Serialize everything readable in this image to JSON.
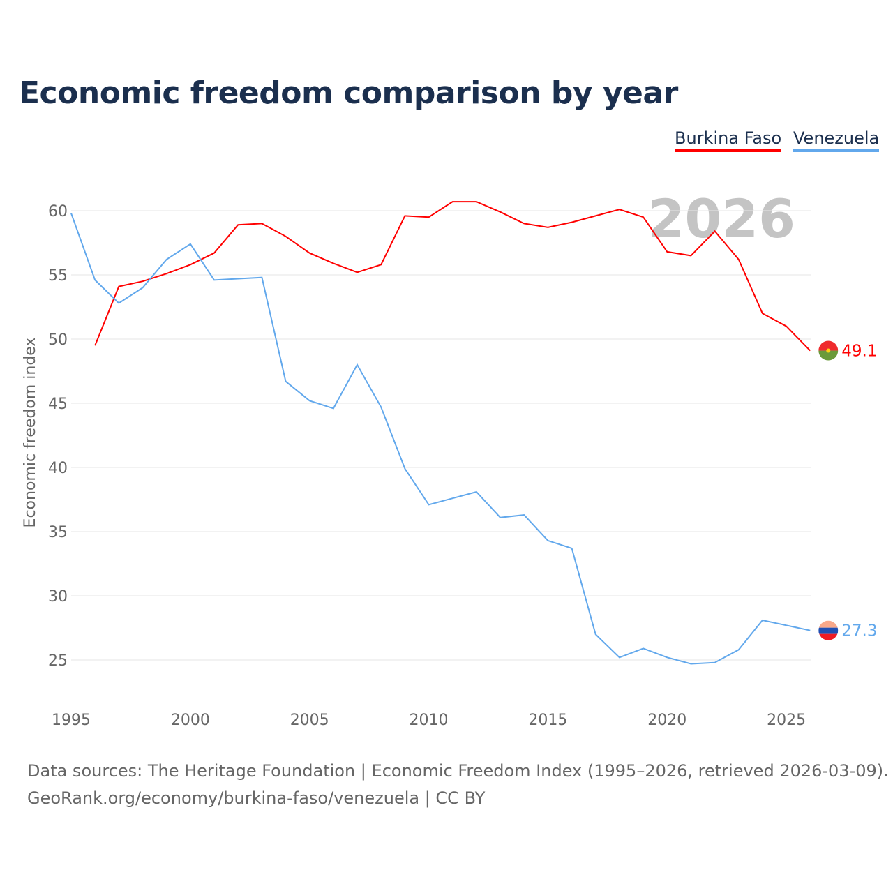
{
  "title": "Economic freedom comparison by year",
  "legend": [
    {
      "label": "Burkina Faso",
      "color": "#ff0000"
    },
    {
      "label": "Venezuela",
      "color": "#62a8ec"
    }
  ],
  "footer": {
    "line1": "Data sources: The Heritage Foundation | Economic Freedom Index (1995–2026, retrieved 2026-03-09).",
    "line2": "GeoRank.org/economy/burkina-faso/venezuela | CC BY"
  },
  "chart_data": {
    "type": "line",
    "title": "Economic freedom comparison by year",
    "xlabel": "",
    "ylabel": "Economic freedom index",
    "year_watermark": "2026",
    "xlim": [
      1995,
      2026
    ],
    "ylim": [
      22,
      62
    ],
    "xticks": [
      1995,
      2000,
      2005,
      2010,
      2015,
      2020,
      2025
    ],
    "yticks": [
      25,
      30,
      35,
      40,
      45,
      50,
      55,
      60
    ],
    "grid": true,
    "legend_position": "top-right",
    "series": [
      {
        "name": "Burkina Faso",
        "color": "#ff0000",
        "end_label": "49.1",
        "x": [
          1996,
          1997,
          1998,
          1999,
          2000,
          2001,
          2002,
          2003,
          2004,
          2005,
          2006,
          2007,
          2008,
          2009,
          2010,
          2011,
          2012,
          2013,
          2014,
          2015,
          2016,
          2017,
          2018,
          2019,
          2020,
          2021,
          2022,
          2023,
          2024,
          2025,
          2026
        ],
        "values": [
          49.5,
          54.1,
          54.5,
          55.1,
          55.8,
          56.7,
          58.9,
          59.0,
          58.0,
          56.7,
          55.9,
          55.2,
          55.8,
          59.6,
          59.5,
          60.7,
          60.7,
          59.9,
          59.0,
          58.7,
          59.1,
          59.6,
          60.1,
          59.5,
          56.8,
          56.5,
          58.4,
          56.2,
          52.0,
          51.0,
          49.1
        ]
      },
      {
        "name": "Venezuela",
        "color": "#62a8ec",
        "end_label": "27.3",
        "x": [
          1995,
          1996,
          1997,
          1998,
          1999,
          2000,
          2001,
          2002,
          2003,
          2004,
          2005,
          2006,
          2007,
          2008,
          2009,
          2010,
          2011,
          2012,
          2013,
          2014,
          2015,
          2016,
          2017,
          2018,
          2019,
          2020,
          2021,
          2022,
          2023,
          2024,
          2025,
          2026
        ],
        "values": [
          59.8,
          54.6,
          52.8,
          54.0,
          56.2,
          57.4,
          54.6,
          54.7,
          54.8,
          46.7,
          45.2,
          44.6,
          48.0,
          44.7,
          39.9,
          37.1,
          37.6,
          38.1,
          36.1,
          36.3,
          34.3,
          33.7,
          27.0,
          25.2,
          25.9,
          25.2,
          24.7,
          24.8,
          25.8,
          28.1,
          27.7,
          27.3
        ]
      }
    ]
  }
}
